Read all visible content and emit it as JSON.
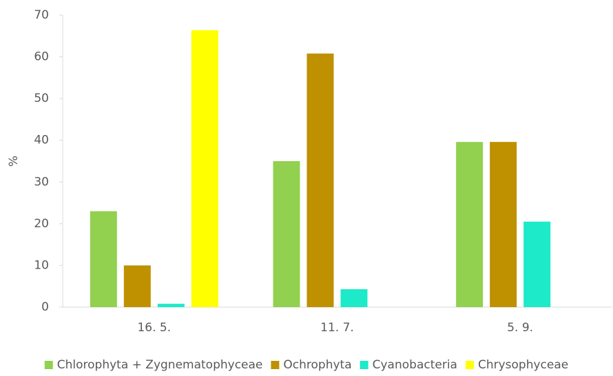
{
  "chart_data": {
    "type": "bar",
    "ylabel": "%",
    "categories": [
      "16. 5.",
      "11. 7.",
      "5. 9."
    ],
    "series": [
      {
        "name": "Chlorophyta + Zygnematophyceae",
        "color": "#92d050",
        "values": [
          23,
          35,
          39.6
        ]
      },
      {
        "name": "Ochrophyta",
        "color": "#bf9000",
        "values": [
          10,
          60.8,
          39.6
        ]
      },
      {
        "name": "Cyanobacteria",
        "color": "#1ceac8",
        "values": [
          0.8,
          4.3,
          20.5
        ]
      },
      {
        "name": "Chrysophyceae",
        "color": "#ffff00",
        "values": [
          66.4,
          null,
          null
        ]
      }
    ],
    "ylim": [
      0,
      70
    ],
    "yticks": [
      0,
      10,
      20,
      30,
      40,
      50,
      60,
      70
    ],
    "grid": false,
    "legend": "bottom"
  }
}
